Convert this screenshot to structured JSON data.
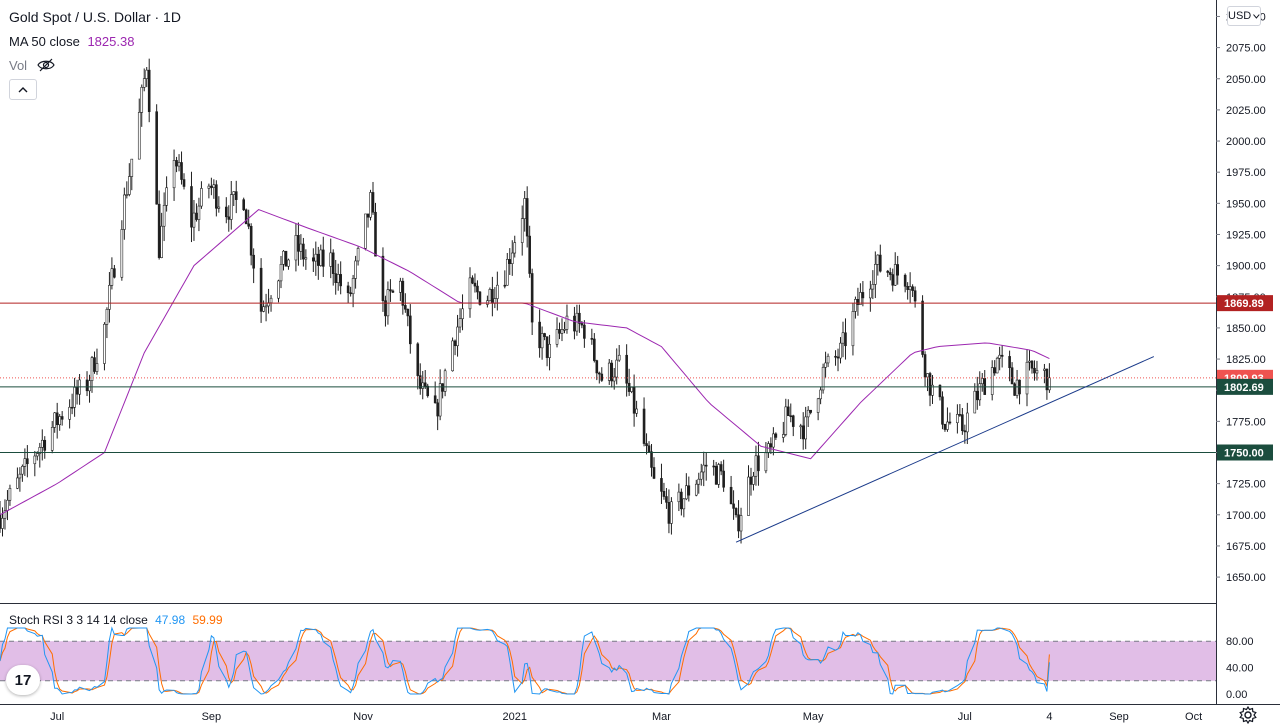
{
  "header": {
    "symbol": "Gold Spot / U.S. Dollar · 1D",
    "ma_label": "MA 50 close",
    "ma_value": "1825.38",
    "vol_label": "Vol",
    "currency": "USD",
    "rsi_label": "Stoch RSI 3 3 14 14 close",
    "rsi_k": "47.98",
    "rsi_d": "59.99",
    "logo_text": "17"
  },
  "icons": {
    "visibility": "eye-off-icon",
    "collapse": "chevron-up-icon",
    "settings": "gear-icon",
    "logo": "tradingview-logo-icon"
  },
  "colors": {
    "up": "#26a69a",
    "down": "#ef5350",
    "candle_up_fill": "#ffffff",
    "candle_down_fill": "#1f1f1f",
    "ma": "#9c27b0",
    "resistance": "#b22222",
    "support": "#1b4d3e",
    "trend": "#1a3a8a",
    "last_price": "#ef5350",
    "stoch_k": "#2196f3",
    "stoch_d": "#ff6d00",
    "stoch_band": "#e1bee7"
  },
  "chart_data": {
    "type": "candlestick",
    "symbol": "XAUUSD",
    "interval": "1D",
    "y_axis": {
      "min": 1630,
      "max": 2110,
      "ticks": [
        "1650.00",
        "1675.00",
        "1700.00",
        "1725.00",
        "1750.00",
        "1775.00",
        "1800.00",
        "1825.00",
        "1850.00",
        "1875.00",
        "1900.00",
        "1925.00",
        "1950.00",
        "1975.00",
        "2000.00",
        "2025.00",
        "2050.00",
        "2075.00",
        "2100.00"
      ]
    },
    "x_axis": {
      "start": "2020-06-08",
      "end": "2021-10-10",
      "labels": [
        {
          "text": "Jul",
          "date": "2020-07-01"
        },
        {
          "text": "Sep",
          "date": "2020-09-01"
        },
        {
          "text": "Nov",
          "date": "2020-11-01"
        },
        {
          "text": "2021",
          "date": "2021-01-01"
        },
        {
          "text": "Mar",
          "date": "2021-03-01"
        },
        {
          "text": "May",
          "date": "2021-05-01"
        },
        {
          "text": "Jul",
          "date": "2021-07-01"
        },
        {
          "text": "4",
          "date": "2021-08-04"
        },
        {
          "text": "Sep",
          "date": "2021-09-01"
        },
        {
          "text": "Oct",
          "date": "2021-10-01"
        }
      ]
    },
    "price_labels": [
      {
        "text": "1869.89",
        "value": 1869.89,
        "role": "resistance"
      },
      {
        "text": "1809.93",
        "value": 1809.93,
        "role": "last_price"
      },
      {
        "text": "1802.69",
        "value": 1802.69,
        "role": "support"
      },
      {
        "text": "1750.00",
        "value": 1750.0,
        "role": "support"
      }
    ],
    "trendline": {
      "from": {
        "date": "2021-03-31",
        "value": 1678
      },
      "to": {
        "date": "2021-09-15",
        "value": 1827
      }
    },
    "price_path": [
      [
        "2020-06-08",
        1700
      ],
      [
        "2020-06-15",
        1725
      ],
      [
        "2020-06-22",
        1750
      ],
      [
        "2020-06-29",
        1770
      ],
      [
        "2020-07-06",
        1790
      ],
      [
        "2020-07-13",
        1805
      ],
      [
        "2020-07-20",
        1850
      ],
      [
        "2020-07-27",
        1940
      ],
      [
        "2020-08-03",
        2020
      ],
      [
        "2020-08-06",
        2063
      ],
      [
        "2020-08-11",
        1915
      ],
      [
        "2020-08-17",
        1990
      ],
      [
        "2020-08-24",
        1935
      ],
      [
        "2020-08-31",
        1965
      ],
      [
        "2020-09-07",
        1945
      ],
      [
        "2020-09-14",
        1955
      ],
      [
        "2020-09-21",
        1865
      ],
      [
        "2020-09-28",
        1895
      ],
      [
        "2020-10-05",
        1915
      ],
      [
        "2020-10-12",
        1900
      ],
      [
        "2020-10-19",
        1905
      ],
      [
        "2020-10-26",
        1870
      ],
      [
        "2020-11-04",
        1950
      ],
      [
        "2020-11-09",
        1865
      ],
      [
        "2020-11-16",
        1885
      ],
      [
        "2020-11-23",
        1805
      ],
      [
        "2020-11-30",
        1780
      ],
      [
        "2020-12-07",
        1840
      ],
      [
        "2020-12-14",
        1880
      ],
      [
        "2020-12-21",
        1875
      ],
      [
        "2020-12-28",
        1895
      ],
      [
        "2021-01-05",
        1950
      ],
      [
        "2021-01-08",
        1850
      ],
      [
        "2021-01-15",
        1830
      ],
      [
        "2021-01-22",
        1855
      ],
      [
        "2021-01-29",
        1850
      ],
      [
        "2021-02-05",
        1810
      ],
      [
        "2021-02-12",
        1820
      ],
      [
        "2021-02-19",
        1780
      ],
      [
        "2021-02-26",
        1725
      ],
      [
        "2021-03-05",
        1700
      ],
      [
        "2021-03-12",
        1720
      ],
      [
        "2021-03-19",
        1740
      ],
      [
        "2021-03-26",
        1730
      ],
      [
        "2021-03-31",
        1690
      ],
      [
        "2021-04-07",
        1740
      ],
      [
        "2021-04-14",
        1750
      ],
      [
        "2021-04-21",
        1780
      ],
      [
        "2021-04-28",
        1770
      ],
      [
        "2021-05-05",
        1815
      ],
      [
        "2021-05-12",
        1830
      ],
      [
        "2021-05-19",
        1870
      ],
      [
        "2021-05-26",
        1900
      ],
      [
        "2021-06-02",
        1895
      ],
      [
        "2021-06-09",
        1890
      ],
      [
        "2021-06-16",
        1810
      ],
      [
        "2021-06-23",
        1775
      ],
      [
        "2021-06-30",
        1770
      ],
      [
        "2021-07-07",
        1800
      ],
      [
        "2021-07-14",
        1825
      ],
      [
        "2021-07-21",
        1805
      ],
      [
        "2021-07-28",
        1815
      ],
      [
        "2021-08-02",
        1812
      ],
      [
        "2021-08-04",
        1809.93
      ]
    ],
    "ma50_path": [
      [
        "2020-06-08",
        1700
      ],
      [
        "2020-07-01",
        1725
      ],
      [
        "2020-07-20",
        1750
      ],
      [
        "2020-08-05",
        1830
      ],
      [
        "2020-08-25",
        1900
      ],
      [
        "2020-09-20",
        1945
      ],
      [
        "2020-10-10",
        1930
      ],
      [
        "2020-10-31",
        1915
      ],
      [
        "2020-11-20",
        1895
      ],
      [
        "2020-12-10",
        1870
      ],
      [
        "2021-01-05",
        1870
      ],
      [
        "2021-01-25",
        1855
      ],
      [
        "2021-02-15",
        1850
      ],
      [
        "2021-03-01",
        1835
      ],
      [
        "2021-03-20",
        1790
      ],
      [
        "2021-04-10",
        1755
      ],
      [
        "2021-04-30",
        1745
      ],
      [
        "2021-05-20",
        1790
      ],
      [
        "2021-06-10",
        1830
      ],
      [
        "2021-06-20",
        1835
      ],
      [
        "2021-07-10",
        1838
      ],
      [
        "2021-07-28",
        1832
      ],
      [
        "2021-08-04",
        1825.38
      ]
    ],
    "stoch_rsi": {
      "y_ticks": [
        "0.00",
        "40.00",
        "80.00"
      ],
      "upper_band": 80,
      "lower_band": 20,
      "k_last": 47.98,
      "d_last": 59.99
    }
  }
}
